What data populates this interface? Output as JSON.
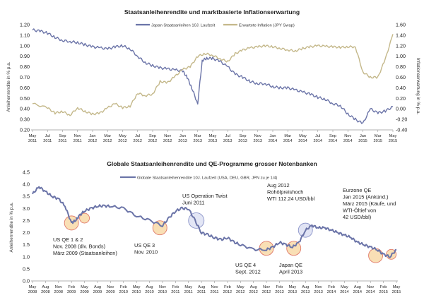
{
  "chart_data": [
    {
      "type": "line",
      "title": "Staatsanleihenrendite und marktbasierte Inflationserwartung",
      "ylabel": "Anleihenrendite in % p.a.",
      "y2label": "Inflationserwartung in % p.a.",
      "ylim": [
        0.2,
        1.2
      ],
      "y2lim": [
        -0.4,
        1.6
      ],
      "yticks": [
        "1.20",
        "1.10",
        "1.00",
        "0.90",
        "0.80",
        "0.70",
        "0.60",
        "0.50",
        "0.40",
        "0.30",
        "0.20"
      ],
      "y2ticks": [
        "1.60",
        "1.40",
        "1.20",
        "1.00",
        "0.80",
        "0.60",
        "0.40",
        "0.20",
        "0.00",
        "-0.20",
        "-0.40"
      ],
      "xticks": [
        {
          "m": "May",
          "y": "2011"
        },
        {
          "m": "Jul",
          "y": "2011"
        },
        {
          "m": "Sep",
          "y": "2011"
        },
        {
          "m": "Nov",
          "y": "2011"
        },
        {
          "m": "Jan",
          "y": "2012"
        },
        {
          "m": "Mar",
          "y": "2012"
        },
        {
          "m": "May",
          "y": "2012"
        },
        {
          "m": "Jul",
          "y": "2012"
        },
        {
          "m": "Sep",
          "y": "2012"
        },
        {
          "m": "Nov",
          "y": "2012"
        },
        {
          "m": "Jan",
          "y": "2013"
        },
        {
          "m": "Mar",
          "y": "2013"
        },
        {
          "m": "May",
          "y": "2013"
        },
        {
          "m": "Jul",
          "y": "2013"
        },
        {
          "m": "Sep",
          "y": "2013"
        },
        {
          "m": "Nov",
          "y": "2013"
        },
        {
          "m": "Jan",
          "y": "2014"
        },
        {
          "m": "Mar",
          "y": "2014"
        },
        {
          "m": "May",
          "y": "2014"
        },
        {
          "m": "Jul",
          "y": "2014"
        },
        {
          "m": "Sep",
          "y": "2014"
        },
        {
          "m": "Nov",
          "y": "2014"
        },
        {
          "m": "Jan",
          "y": "2015"
        },
        {
          "m": "Mar",
          "y": "2015"
        },
        {
          "m": "May",
          "y": "2015"
        }
      ],
      "series": [
        {
          "name": "Japan Staatsanleihen 10J. Laufzeit",
          "axis": "left",
          "color": "#6b74a8",
          "x": [
            0,
            0.5,
            1,
            1.5,
            2,
            2.5,
            3,
            3.5,
            4,
            4.5,
            5,
            5.5,
            6,
            6.5,
            7,
            7.5,
            8,
            8.5,
            9,
            9.5,
            10,
            10.3,
            10.6,
            11,
            11.3,
            11.6,
            12,
            12.5,
            13,
            13.5,
            14,
            14.5,
            15,
            15.5,
            16,
            16.5,
            17,
            17.5,
            18,
            18.5,
            19,
            19.5,
            20,
            20.5,
            21,
            21.5,
            22,
            22.5,
            23,
            23.5,
            24
          ],
          "values": [
            1.15,
            1.14,
            1.12,
            1.08,
            1.05,
            1.04,
            1.03,
            1.01,
            0.99,
            0.98,
            0.97,
            0.99,
            1.0,
            0.97,
            0.9,
            0.84,
            0.81,
            0.79,
            0.78,
            0.77,
            0.76,
            0.7,
            0.6,
            0.45,
            0.86,
            0.88,
            0.88,
            0.85,
            0.8,
            0.73,
            0.7,
            0.66,
            0.64,
            0.64,
            0.61,
            0.6,
            0.6,
            0.58,
            0.56,
            0.54,
            0.51,
            0.49,
            0.45,
            0.43,
            0.35,
            0.3,
            0.26,
            0.4,
            0.36,
            0.38,
            0.42
          ]
        },
        {
          "name": "Erwartete Inflation (JPY Swap)",
          "axis": "right",
          "color": "#c4b88a",
          "x": [
            0,
            1,
            1.5,
            2,
            2.5,
            3,
            3.5,
            4,
            4.5,
            5,
            5.5,
            6,
            6.5,
            7,
            7.5,
            8,
            8.5,
            9,
            9.5,
            10,
            10.5,
            11,
            11.5,
            12,
            12.5,
            13,
            13.5,
            14,
            14.5,
            15,
            15.5,
            16,
            16.5,
            17,
            17.5,
            18,
            18.5,
            19,
            19.5,
            20,
            20.5,
            21,
            21.5,
            22,
            22.5,
            23,
            23.5,
            24
          ],
          "values": [
            0.1,
            0.02,
            -0.08,
            -0.05,
            -0.12,
            0.02,
            -0.05,
            -0.1,
            -0.08,
            0.02,
            0.1,
            0.02,
            0.05,
            0.3,
            0.25,
            0.28,
            0.52,
            0.5,
            0.62,
            0.75,
            0.8,
            1.0,
            1.05,
            1.02,
            0.95,
            0.9,
            1.05,
            1.12,
            1.16,
            1.18,
            1.2,
            1.18,
            1.15,
            1.12,
            1.1,
            1.15,
            1.18,
            1.2,
            1.19,
            1.18,
            1.17,
            1.18,
            1.18,
            0.7,
            0.6,
            0.6,
            0.95,
            1.42
          ]
        }
      ]
    },
    {
      "type": "line",
      "title": "Globale Staatsanleihenrendite und QE-Programme grosser Notenbanken",
      "ylabel": "Anleihenrendite in % p.a.",
      "ylim": [
        0.0,
        4.5
      ],
      "yticks": [
        "4.5",
        "4.0",
        "3.5",
        "3.0",
        "2.5",
        "2.0",
        "1.5",
        "1.0",
        "0.5",
        "0.0"
      ],
      "xticks": [
        {
          "m": "May",
          "y": "2008"
        },
        {
          "m": "Aug",
          "y": "2008"
        },
        {
          "m": "Nov",
          "y": "2008"
        },
        {
          "m": "Feb",
          "y": "2009"
        },
        {
          "m": "May",
          "y": "2009"
        },
        {
          "m": "Aug",
          "y": "2009"
        },
        {
          "m": "Nov",
          "y": "2009"
        },
        {
          "m": "Feb",
          "y": "2010"
        },
        {
          "m": "May",
          "y": "2010"
        },
        {
          "m": "Aug",
          "y": "2010"
        },
        {
          "m": "Nov",
          "y": "2010"
        },
        {
          "m": "Feb",
          "y": "2011"
        },
        {
          "m": "May",
          "y": "2011"
        },
        {
          "m": "Aug",
          "y": "2011"
        },
        {
          "m": "Nov",
          "y": "2011"
        },
        {
          "m": "Feb",
          "y": "2012"
        },
        {
          "m": "May",
          "y": "2012"
        },
        {
          "m": "Aug",
          "y": "2012"
        },
        {
          "m": "Nov",
          "y": "2012"
        },
        {
          "m": "Feb",
          "y": "2013"
        },
        {
          "m": "May",
          "y": "2013"
        },
        {
          "m": "Aug",
          "y": "2013"
        },
        {
          "m": "Nov",
          "y": "2013"
        },
        {
          "m": "Feb",
          "y": "2014"
        },
        {
          "m": "May",
          "y": "2014"
        },
        {
          "m": "Aug",
          "y": "2014"
        },
        {
          "m": "Nov",
          "y": "2014"
        },
        {
          "m": "Feb",
          "y": "2015"
        },
        {
          "m": "May",
          "y": "2015"
        }
      ],
      "series": [
        {
          "name": "Globale Staatsanleihenrendite 10J. Laufzeit (USA, DEU, GBR, JPN zu je 1/4)",
          "color": "#6b74a8",
          "x": [
            0,
            0.5,
            1,
            1.5,
            2,
            2.5,
            3,
            3.3,
            3.6,
            4,
            4.5,
            5,
            5.5,
            6,
            7,
            8,
            9,
            10,
            10.5,
            11,
            11.5,
            12,
            12.5,
            13,
            13.5,
            14,
            14.5,
            15,
            15.5,
            16,
            17,
            18,
            18.5,
            19,
            19.5,
            20,
            20.5,
            21,
            21.5,
            22,
            22.5,
            23,
            23.5,
            24,
            24.5,
            25,
            25.5,
            26,
            26.5,
            27,
            27.5,
            28
          ],
          "values": [
            3.6,
            3.9,
            3.7,
            3.5,
            3.4,
            3.1,
            2.4,
            2.5,
            2.7,
            2.9,
            3.0,
            3.1,
            3.1,
            3.1,
            3.0,
            2.7,
            2.5,
            2.3,
            2.6,
            2.9,
            3.0,
            3.0,
            2.5,
            2.0,
            1.9,
            1.8,
            1.7,
            1.8,
            1.6,
            1.5,
            1.3,
            1.3,
            1.4,
            1.6,
            1.5,
            1.4,
            1.6,
            2.1,
            2.3,
            2.2,
            2.2,
            2.1,
            2.0,
            1.9,
            1.8,
            1.6,
            1.5,
            1.4,
            1.3,
            1.1,
            1.0,
            1.3
          ]
        }
      ],
      "annotations": [
        {
          "lines": [
            "US QE 1 & 2",
            "Nov. 2008 (div. Bonds)",
            "März 2009 (Staatsanleihen)"
          ]
        },
        {
          "lines": [
            "US QE 3",
            "Nov. 2010"
          ]
        },
        {
          "lines": [
            "US Operation Twist",
            "Juni 2011"
          ]
        },
        {
          "lines": [
            "US QE 4",
            "Sept. 2012"
          ]
        },
        {
          "lines": [
            "Japan QE",
            "April 2013"
          ]
        },
        {
          "lines": [
            "Aug 2012",
            "Rohölpreishoch",
            "WTI 112.24 USD/bbl"
          ]
        },
        {
          "lines": [
            "Eurzone QE",
            "Jan 2015 (Ankünd.)",
            "März 2015 (Käufe, und",
            "WTI-Öltief von",
            "42 USD/bbl)"
          ]
        }
      ],
      "markers": [
        {
          "x": 3.0,
          "y": 2.4,
          "kind": "qe"
        },
        {
          "x": 4.0,
          "y": 2.6,
          "kind": "qe"
        },
        {
          "x": 9.8,
          "y": 2.2,
          "kind": "qe"
        },
        {
          "x": 12.6,
          "y": 2.5,
          "kind": "twist"
        },
        {
          "x": 18.0,
          "y": 1.35,
          "kind": "qe"
        },
        {
          "x": 20.1,
          "y": 1.35,
          "kind": "qe"
        },
        {
          "x": 21.0,
          "y": 2.1,
          "kind": "oil"
        },
        {
          "x": 26.4,
          "y": 1.05,
          "kind": "qe"
        },
        {
          "x": 27.6,
          "y": 1.1,
          "kind": "qe"
        }
      ]
    }
  ]
}
